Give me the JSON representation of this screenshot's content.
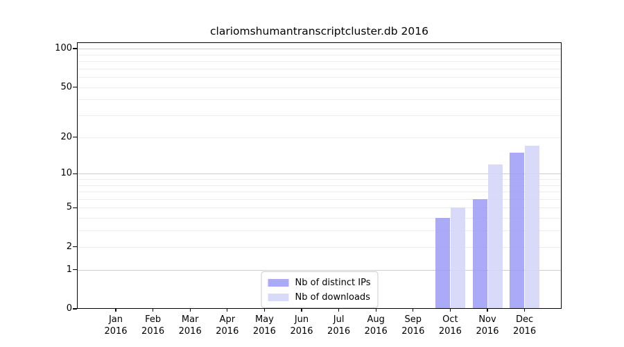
{
  "figure": {
    "background": "#ffffff"
  },
  "chart_data": {
    "type": "bar",
    "title": "clariomshumantranscriptcluster.db 2016",
    "categories": [
      "Jan 2016",
      "Feb 2016",
      "Mar 2016",
      "Apr 2016",
      "May 2016",
      "Jun 2016",
      "Jul 2016",
      "Aug 2016",
      "Sep 2016",
      "Oct 2016",
      "Nov 2016",
      "Dec 2016"
    ],
    "x_tick_month": [
      "Jan",
      "Feb",
      "Mar",
      "Apr",
      "May",
      "Jun",
      "Jul",
      "Aug",
      "Sep",
      "Oct",
      "Nov",
      "Dec"
    ],
    "x_tick_year": "2016",
    "series": [
      {
        "name": "Nb of distinct IPs",
        "color": "#9b9bf7",
        "alpha": 0.85,
        "values": [
          0,
          0,
          0,
          0,
          0,
          0,
          0,
          0,
          0,
          4,
          6,
          15
        ]
      },
      {
        "name": "Nb of downloads",
        "color": "#d5d5f9",
        "alpha": 0.9,
        "values": [
          0,
          0,
          0,
          0,
          0,
          0,
          0,
          0,
          0,
          5,
          12,
          17
        ]
      }
    ],
    "yscale": "log1p",
    "ylim": [
      0,
      112
    ],
    "yticks": [
      0,
      1,
      2,
      5,
      10,
      20,
      50,
      100
    ],
    "grid": {
      "on": true,
      "major_values": [
        1,
        10,
        100
      ],
      "minor_values": [
        2,
        3,
        4,
        5,
        6,
        7,
        8,
        9,
        20,
        30,
        40,
        50,
        60,
        70,
        80,
        90
      ],
      "major_color": "#cccccc",
      "minor_color": "#ececec"
    },
    "legend_position": "bottom-center"
  }
}
